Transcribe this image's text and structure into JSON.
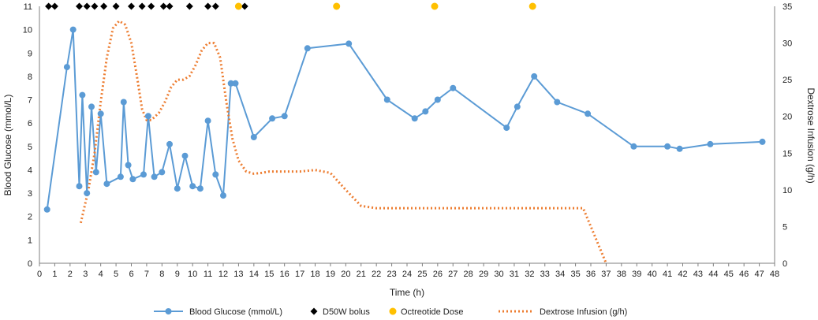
{
  "chart_data": {
    "type": "line",
    "title": "",
    "xlabel": "Time (h)",
    "ylabel": "Blood Glucose (mmol/L)",
    "y2label": "Dextrose Infusion (g/h)",
    "xlim": [
      0,
      48
    ],
    "ylim": [
      0,
      11
    ],
    "y2lim": [
      0,
      35
    ],
    "xticks": [
      0,
      1,
      2,
      3,
      4,
      5,
      6,
      7,
      8,
      9,
      10,
      11,
      12,
      13,
      14,
      15,
      16,
      17,
      18,
      19,
      20,
      21,
      22,
      23,
      24,
      25,
      26,
      27,
      28,
      29,
      30,
      31,
      32,
      33,
      34,
      35,
      36,
      37,
      38,
      39,
      40,
      41,
      42,
      43,
      44,
      45,
      46,
      47,
      48
    ],
    "yticks": [
      0,
      1,
      2,
      3,
      4,
      5,
      6,
      7,
      8,
      9,
      10,
      11
    ],
    "y2ticks": [
      0,
      5,
      10,
      15,
      20,
      25,
      30,
      35
    ],
    "colors": {
      "glucose": "#5b9bd5",
      "dextrose": "#ed7d31",
      "octreotide": "#ffc000",
      "d50w": "#000000",
      "axis": "#7f7f7f"
    },
    "legend_position": "bottom",
    "series": [
      {
        "name": "Blood Glucose (mmol/L)",
        "axis": "left",
        "style": "line-marker",
        "x": [
          0.5,
          1.8,
          2.2,
          2.6,
          2.8,
          3.1,
          3.4,
          3.7,
          4.0,
          4.4,
          5.3,
          5.5,
          5.8,
          6.1,
          6.8,
          7.1,
          7.5,
          8.0,
          8.5,
          9.0,
          9.5,
          10.0,
          10.5,
          11.0,
          11.5,
          12.0,
          12.5,
          12.8,
          14.0,
          15.2,
          16.0,
          17.5,
          20.2,
          22.7,
          24.5,
          25.2,
          26.0,
          27.0,
          30.5,
          31.2,
          32.3,
          33.8,
          35.8,
          38.8,
          41.0,
          41.8,
          43.8,
          47.2
        ],
        "y": [
          2.3,
          8.4,
          10.0,
          3.3,
          7.2,
          3.0,
          6.7,
          3.9,
          6.4,
          3.4,
          3.7,
          6.9,
          4.2,
          3.6,
          3.8,
          6.3,
          3.7,
          3.9,
          5.1,
          3.2,
          4.6,
          3.3,
          3.2,
          6.1,
          3.8,
          2.9,
          7.7,
          7.7,
          5.4,
          6.2,
          6.3,
          9.2,
          9.4,
          7.0,
          6.2,
          6.5,
          7.0,
          7.5,
          5.8,
          6.7,
          8.0,
          6.9,
          6.4,
          5.0,
          5.0,
          4.9,
          5.1,
          5.2
        ]
      },
      {
        "name": "D50W bolus",
        "axis": "left",
        "style": "marker",
        "x": [
          0.6,
          1.0,
          2.6,
          3.1,
          3.6,
          4.2,
          5.0,
          6.0,
          6.7,
          7.3,
          8.1,
          8.5,
          9.8,
          11.0,
          11.5,
          13.4
        ],
        "y": [
          11,
          11,
          11,
          11,
          11,
          11,
          11,
          11,
          11,
          11,
          11,
          11,
          11,
          11,
          11,
          11
        ]
      },
      {
        "name": "Octreotide Dose",
        "axis": "left",
        "style": "marker",
        "x": [
          13.0,
          19.4,
          25.8,
          32.2
        ],
        "y": [
          11,
          11,
          11,
          11
        ]
      },
      {
        "name": "Dextrose Infusion (g/h)",
        "axis": "right",
        "style": "dotted-line",
        "x": [
          2.7,
          3.2,
          3.6,
          4.0,
          4.4,
          4.8,
          5.2,
          5.6,
          6.0,
          6.4,
          6.7,
          7.0,
          7.3,
          7.8,
          8.2,
          8.6,
          9.0,
          9.4,
          9.8,
          10.2,
          10.6,
          11.0,
          11.4,
          11.8,
          12.2,
          12.6,
          13.0,
          13.5,
          14.0,
          14.5,
          15.0,
          16.0,
          17.0,
          18.0,
          19.0,
          20.0,
          21.0,
          22.0,
          24.0,
          26.0,
          28.0,
          30.0,
          32.0,
          34.0,
          35.5,
          36.0,
          37.0
        ],
        "y": [
          5.5,
          10,
          15,
          22,
          28,
          32,
          33,
          32.5,
          30,
          25,
          21,
          19.5,
          19.5,
          20.5,
          22,
          24,
          25,
          25,
          25.5,
          27,
          29,
          30,
          30,
          28,
          22,
          17,
          14,
          12.5,
          12.2,
          12.3,
          12.5,
          12.5,
          12.5,
          12.7,
          12.3,
          10,
          7.8,
          7.5,
          7.5,
          7.5,
          7.5,
          7.5,
          7.5,
          7.5,
          7.5,
          5,
          0
        ]
      }
    ]
  }
}
